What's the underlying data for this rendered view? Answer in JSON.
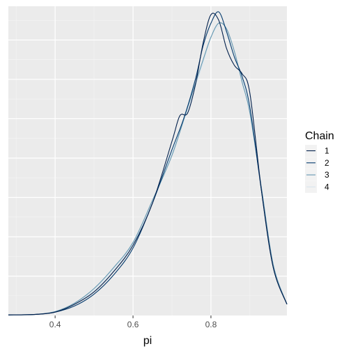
{
  "chart_data": {
    "type": "line",
    "title": "",
    "xlabel": "pi",
    "ylabel": "",
    "xlim": [
      0.28,
      0.995
    ],
    "ylim": [
      0,
      5.5
    ],
    "x_ticks": [
      0.4,
      0.6,
      0.8
    ],
    "x_tick_labels": [
      "0.4",
      "0.6",
      "0.8"
    ],
    "y_ticks": [
      0.7,
      1.4,
      2.1,
      2.8,
      3.5,
      4.2,
      4.9
    ],
    "y_tick_labels": [],
    "grid": true,
    "panel_background": "#ebebeb",
    "legend": {
      "title": "Chain",
      "position": "right",
      "entries": [
        "1",
        "2",
        "3",
        "4"
      ]
    },
    "series": [
      {
        "name": "1",
        "color": "#011f4b",
        "x": [
          0.28,
          0.35,
          0.4,
          0.45,
          0.5,
          0.55,
          0.6,
          0.65,
          0.7,
          0.72,
          0.74,
          0.76,
          0.78,
          0.8,
          0.82,
          0.84,
          0.86,
          0.88,
          0.9,
          0.93,
          0.96,
          0.995
        ],
        "y": [
          0.01,
          0.02,
          0.06,
          0.2,
          0.42,
          0.78,
          1.25,
          2.0,
          3.1,
          3.55,
          3.6,
          4.1,
          4.85,
          5.35,
          5.25,
          4.75,
          4.45,
          4.3,
          3.95,
          2.2,
          0.85,
          0.2
        ]
      },
      {
        "name": "2",
        "color": "#03396c",
        "x": [
          0.28,
          0.35,
          0.4,
          0.45,
          0.5,
          0.55,
          0.6,
          0.65,
          0.7,
          0.73,
          0.76,
          0.78,
          0.8,
          0.82,
          0.84,
          0.86,
          0.88,
          0.9,
          0.93,
          0.96,
          0.995
        ],
        "y": [
          0.01,
          0.02,
          0.06,
          0.17,
          0.38,
          0.72,
          1.2,
          2.0,
          2.95,
          3.5,
          4.2,
          4.8,
          5.2,
          5.4,
          5.05,
          4.6,
          4.25,
          3.7,
          2.2,
          0.85,
          0.2
        ]
      },
      {
        "name": "3",
        "color": "#6497b1",
        "x": [
          0.28,
          0.35,
          0.4,
          0.45,
          0.5,
          0.55,
          0.6,
          0.65,
          0.7,
          0.74,
          0.78,
          0.8,
          0.82,
          0.84,
          0.86,
          0.88,
          0.9,
          0.93,
          0.96,
          0.995
        ],
        "y": [
          0.01,
          0.02,
          0.07,
          0.22,
          0.48,
          0.85,
          1.3,
          2.05,
          2.85,
          3.7,
          4.55,
          4.95,
          5.2,
          5.1,
          4.7,
          4.15,
          3.6,
          2.25,
          0.9,
          0.2
        ]
      },
      {
        "name": "4",
        "color": "#d9e6ee",
        "x": [
          0.28,
          0.35,
          0.4,
          0.45,
          0.5,
          0.55,
          0.6,
          0.65,
          0.7,
          0.74,
          0.78,
          0.8,
          0.82,
          0.84,
          0.86,
          0.88,
          0.9,
          0.93,
          0.96,
          0.995
        ],
        "y": [
          0.01,
          0.02,
          0.07,
          0.2,
          0.45,
          0.82,
          1.28,
          2.0,
          2.9,
          3.65,
          4.5,
          4.95,
          5.15,
          5.0,
          4.6,
          4.2,
          3.65,
          2.25,
          0.9,
          0.2
        ]
      }
    ]
  }
}
